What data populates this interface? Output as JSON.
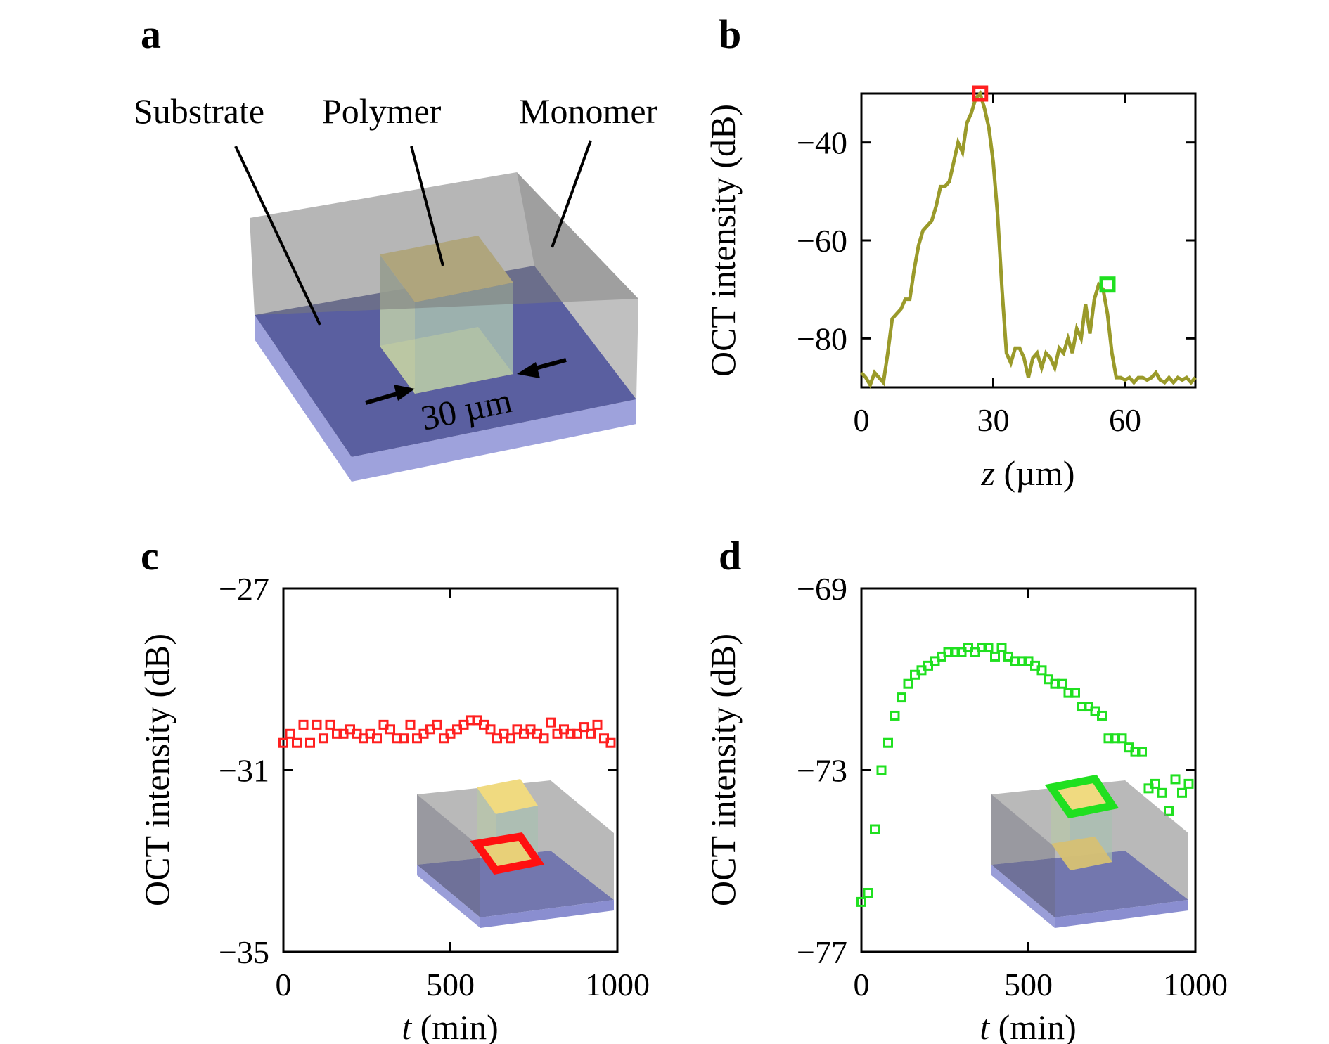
{
  "panels": {
    "a": {
      "label": "a",
      "substrate_label": "Substrate",
      "polymer_label": "Polymer",
      "monomer_label": "Monomer",
      "dimension_label": "30 µm"
    },
    "b": {
      "label": "b"
    },
    "c": {
      "label": "c"
    },
    "d": {
      "label": "d"
    }
  },
  "colors": {
    "monomer": "#8a8a8a",
    "substrate": "#5a5fa0",
    "polymer": "#e8d078",
    "line_b": "#9a9a2a",
    "red": "#ff2020",
    "green": "#20e020"
  },
  "chart_data": [
    {
      "type": "line",
      "panel": "b",
      "xlabel_italic": "z",
      "xlabel_rest": " (µm)",
      "ylabel": "OCT intensity (dB)",
      "xlim": [
        0,
        76
      ],
      "ylim": [
        -90,
        -30
      ],
      "xticks": [
        0,
        30,
        60
      ],
      "yticks": [
        -40,
        -60,
        -80
      ],
      "tick_labels_x": [
        "0",
        "30",
        "60"
      ],
      "tick_labels_y": [
        "−40",
        "−60",
        "−80"
      ],
      "x": [
        0,
        1,
        2,
        3,
        4,
        5,
        6,
        7,
        8,
        9,
        10,
        11,
        12,
        13,
        14,
        15,
        16,
        17,
        18,
        19,
        20,
        21,
        22,
        23,
        24,
        25,
        26,
        27,
        28,
        29,
        30,
        31,
        32,
        33,
        34,
        35,
        36,
        37,
        38,
        39,
        40,
        41,
        42,
        43,
        44,
        45,
        46,
        47,
        48,
        49,
        50,
        51,
        52,
        53,
        54,
        55,
        56,
        57,
        58,
        59,
        60,
        61,
        62,
        63,
        64,
        65,
        66,
        67,
        68,
        69,
        70,
        71,
        72,
        73,
        74,
        75,
        76
      ],
      "y": [
        -87,
        -88,
        -89.5,
        -87,
        -88,
        -89,
        -83,
        -76,
        -75,
        -74,
        -72,
        -72,
        -66,
        -61,
        -58,
        -57,
        -56,
        -53,
        -49,
        -49,
        -48,
        -44,
        -40,
        -42,
        -36,
        -34,
        -31,
        -30,
        -33,
        -37,
        -44,
        -55,
        -70,
        -83,
        -85,
        -82,
        -82,
        -84,
        -88,
        -84,
        -83,
        -86,
        -83,
        -84,
        -86,
        -82,
        -83,
        -80,
        -83,
        -78,
        -80,
        -73,
        -79,
        -72,
        -69,
        -70,
        -75,
        -83,
        -88,
        -88,
        -88.5,
        -88,
        -89,
        -88,
        -88,
        -88.5,
        -88,
        -87,
        -88.5,
        -89,
        -88,
        -89,
        -88,
        -88.5,
        -88,
        -89,
        -88
      ],
      "markers": [
        {
          "x": 27,
          "y": -30,
          "color": "red"
        },
        {
          "x": 56,
          "y": -69,
          "color": "green"
        }
      ]
    },
    {
      "type": "scatter",
      "panel": "c",
      "xlabel_italic": "t",
      "xlabel_rest": " (min)",
      "ylabel": "OCT intensity (dB)",
      "xlim": [
        0,
        1000
      ],
      "ylim": [
        -35,
        -27
      ],
      "xticks": [
        0,
        500,
        1000
      ],
      "yticks": [
        -27,
        -31,
        -35
      ],
      "tick_labels_x": [
        "0",
        "500",
        "1000"
      ],
      "tick_labels_y": [
        "−27",
        "−31",
        "−35"
      ],
      "marker_color": "red",
      "x": [
        0,
        20,
        40,
        60,
        80,
        100,
        120,
        140,
        160,
        180,
        200,
        220,
        240,
        260,
        280,
        300,
        320,
        340,
        360,
        380,
        400,
        420,
        440,
        460,
        480,
        500,
        520,
        540,
        560,
        580,
        600,
        620,
        640,
        660,
        680,
        700,
        720,
        740,
        760,
        780,
        800,
        820,
        840,
        860,
        880,
        900,
        920,
        940,
        960,
        980
      ],
      "y": [
        -30.4,
        -30.2,
        -30.4,
        -30.0,
        -30.4,
        -30.0,
        -30.3,
        -30.0,
        -30.2,
        -30.2,
        -30.1,
        -30.2,
        -30.3,
        -30.2,
        -30.3,
        -30.0,
        -30.1,
        -30.3,
        -30.3,
        -30.0,
        -30.3,
        -30.2,
        -30.1,
        -30.0,
        -30.3,
        -30.2,
        -30.1,
        -30.0,
        -29.9,
        -29.9,
        -30.0,
        -30.1,
        -30.3,
        -30.2,
        -30.3,
        -30.1,
        -30.2,
        -30.1,
        -30.2,
        -30.3,
        -29.95,
        -30.2,
        -30.1,
        -30.2,
        -30.2,
        -30.05,
        -30.2,
        -30.0,
        -30.3,
        -30.4
      ]
    },
    {
      "type": "scatter",
      "panel": "d",
      "xlabel_italic": "t",
      "xlabel_rest": " (min)",
      "ylabel": "OCT intensity (dB)",
      "xlim": [
        0,
        1000
      ],
      "ylim": [
        -77,
        -69
      ],
      "xticks": [
        0,
        500,
        1000
      ],
      "yticks": [
        -69,
        -73,
        -77
      ],
      "tick_labels_x": [
        "0",
        "500",
        "1000"
      ],
      "tick_labels_y": [
        "−69",
        "−73",
        "−77"
      ],
      "marker_color": "green",
      "x": [
        0,
        20,
        40,
        60,
        80,
        100,
        120,
        140,
        160,
        180,
        200,
        220,
        240,
        260,
        280,
        300,
        320,
        340,
        360,
        380,
        400,
        420,
        440,
        460,
        480,
        500,
        520,
        540,
        560,
        580,
        600,
        620,
        640,
        660,
        680,
        700,
        720,
        740,
        760,
        780,
        800,
        820,
        840,
        860,
        880,
        900,
        920,
        940,
        960,
        980
      ],
      "y": [
        -75.9,
        -75.7,
        -74.3,
        -73.0,
        -72.4,
        -71.8,
        -71.4,
        -71.1,
        -70.9,
        -70.8,
        -70.7,
        -70.6,
        -70.5,
        -70.4,
        -70.4,
        -70.4,
        -70.3,
        -70.4,
        -70.3,
        -70.3,
        -70.5,
        -70.3,
        -70.5,
        -70.6,
        -70.6,
        -70.6,
        -70.7,
        -70.8,
        -71.0,
        -71.1,
        -71.1,
        -71.3,
        -71.3,
        -71.6,
        -71.6,
        -71.7,
        -71.8,
        -72.3,
        -72.3,
        -72.3,
        -72.5,
        -72.6,
        -72.6,
        -73.4,
        -73.3,
        -73.5,
        -73.9,
        -73.2,
        -73.5,
        -73.3
      ]
    }
  ]
}
